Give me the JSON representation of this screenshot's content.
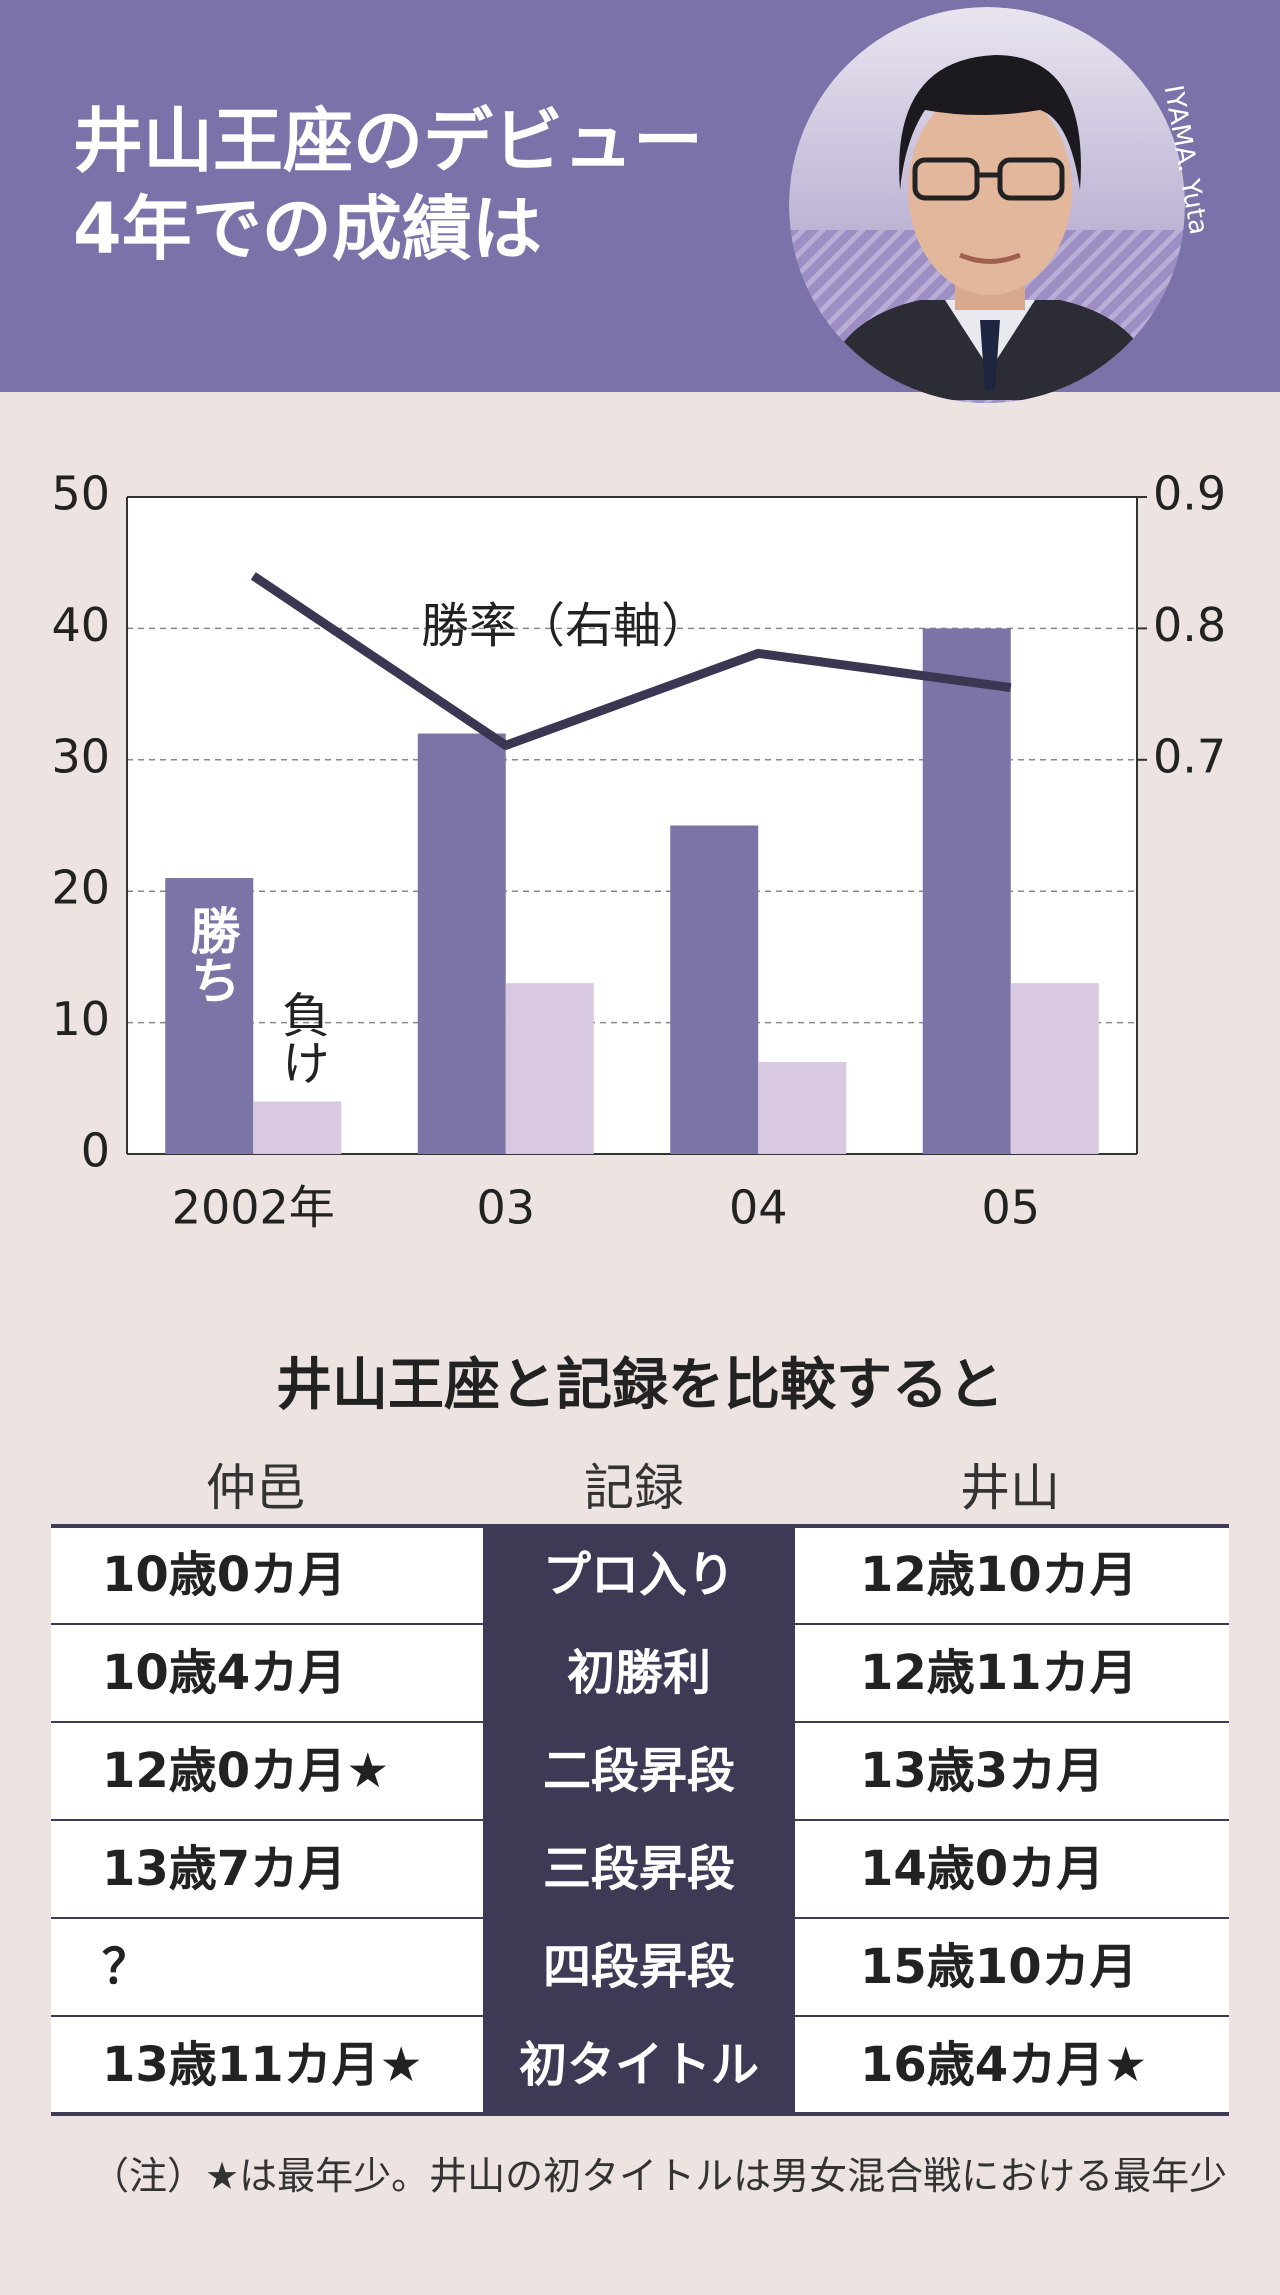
{
  "header": {
    "title": [
      "井山王座のデビュー",
      "4年での成績は"
    ],
    "photo_caption": "IYAMA. Yuta"
  },
  "chart_data": {
    "type": "bar",
    "categories": [
      "2002年",
      "03",
      "04",
      "05"
    ],
    "series": [
      {
        "name": "勝ち",
        "color": "#7b74a6",
        "values": [
          21,
          32,
          25,
          40
        ]
      },
      {
        "name": "負け",
        "color": "#d8c9e0",
        "values": [
          4,
          13,
          7,
          13
        ]
      },
      {
        "name": "勝率（右軸）",
        "type": "line",
        "axis": "y2",
        "color": "#3b3752",
        "values": [
          0.84,
          0.711,
          0.781,
          0.755
        ]
      }
    ],
    "ylim": [
      0,
      50
    ],
    "yticks": [
      0,
      10,
      20,
      30,
      40,
      50
    ],
    "y2lim": [
      0.4,
      0.9
    ],
    "y2ticks": [
      0.7,
      0.8,
      0.9
    ],
    "grid": true
  },
  "table": {
    "title": "井山王座と記録を比較すると",
    "headers": [
      "仲邑",
      "記録",
      "井山"
    ],
    "rows": [
      [
        "10歳0カ月",
        "プロ入り",
        "12歳10カ月"
      ],
      [
        "10歳4カ月",
        "初勝利",
        "12歳11カ月"
      ],
      [
        "12歳0カ月★",
        "二段昇段",
        "13歳3カ月"
      ],
      [
        "13歳7カ月",
        "三段昇段",
        "14歳0カ月"
      ],
      [
        "？",
        "四段昇段",
        "15歳10カ月"
      ],
      [
        "13歳11カ月★",
        "初タイトル",
        "16歳4カ月★"
      ]
    ],
    "note": "（注）★は最年少。井山の初タイトルは男女混合戦における最年少"
  }
}
